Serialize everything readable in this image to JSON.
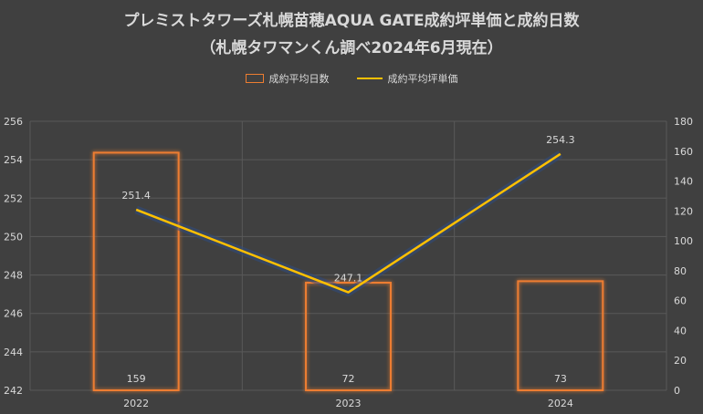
{
  "chart_data": {
    "type": "bar+line",
    "title_line1": "プレミストタワーズ札幌苗穂AQUA GATE成約坪単価と成約日数",
    "title_line2": "（札幌タワマンくん調べ2024年6月現在）",
    "categories": [
      "2022",
      "2023",
      "2024"
    ],
    "series": [
      {
        "name": "成約平均日数",
        "kind": "bar",
        "axis": "right",
        "values": [
          159,
          72,
          73
        ],
        "color": "#ed7d31"
      },
      {
        "name": "成約平均坪単価",
        "kind": "line",
        "axis": "left",
        "values": [
          251.4,
          247.1,
          254.3
        ],
        "color": "#ffc000"
      }
    ],
    "left_axis": {
      "min": 242,
      "max": 256,
      "step": 2,
      "ticks": [
        "242",
        "244",
        "246",
        "248",
        "250",
        "252",
        "254",
        "256"
      ]
    },
    "right_axis": {
      "min": 0,
      "max": 180,
      "step": 20,
      "ticks": [
        "0",
        "20",
        "40",
        "60",
        "80",
        "100",
        "120",
        "140",
        "160",
        "180"
      ]
    },
    "bar_labels": [
      "159",
      "72",
      "73"
    ],
    "line_labels": [
      "251.4",
      "247.1",
      "254.3"
    ],
    "legend_position": "top",
    "grid": true
  }
}
